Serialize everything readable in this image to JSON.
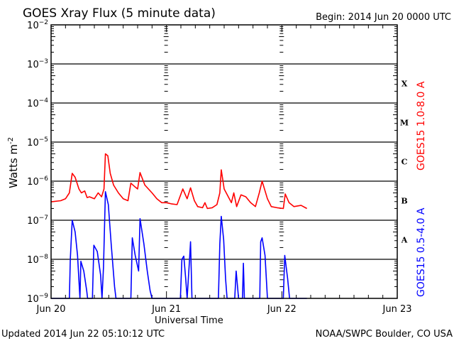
{
  "chart_data": {
    "type": "line",
    "title": "GOES Xray Flux (5 minute data)",
    "begin_label": "Begin:  2014 Jun 20 0000 UTC",
    "xlabel": "Universal Time",
    "ylabel": "Watts m",
    "ylabel_sup": "-2",
    "x_unit": "hours since 2014 Jun 20 0000 UTC",
    "xlim": [
      0,
      72
    ],
    "x_tick_labels": [
      "Jun 20",
      "Jun 21",
      "Jun 22",
      "Jun 23"
    ],
    "x_tick_hours": [
      0,
      24,
      48,
      72
    ],
    "y_scale": "log",
    "ylim": [
      1e-09,
      0.01
    ],
    "y_tick_base": "10",
    "y_tick_exponents": [
      -2,
      -3,
      -4,
      -5,
      -6,
      -7,
      -8,
      -9
    ],
    "flare_classes": [
      {
        "label": "X",
        "decade_exponent": -4
      },
      {
        "label": "M",
        "decade_exponent": -5
      },
      {
        "label": "C",
        "decade_exponent": -6
      },
      {
        "label": "B",
        "decade_exponent": -7
      },
      {
        "label": "A",
        "decade_exponent": -8
      }
    ],
    "grid": true,
    "series": [
      {
        "name": "GOES15 1.0-8.0 A",
        "color": "#ff0000",
        "points_hour_log10flux": [
          [
            0,
            -6.53
          ],
          [
            2,
            -6.5
          ],
          [
            3,
            -6.45
          ],
          [
            3.8,
            -6.3
          ],
          [
            4.4,
            -5.8
          ],
          [
            5,
            -5.9
          ],
          [
            5.8,
            -6.2
          ],
          [
            6.3,
            -6.3
          ],
          [
            7,
            -6.25
          ],
          [
            7.5,
            -6.42
          ],
          [
            8,
            -6.4
          ],
          [
            9,
            -6.45
          ],
          [
            9.8,
            -6.3
          ],
          [
            10.5,
            -6.4
          ],
          [
            11,
            -6.2
          ],
          [
            11.3,
            -5.3
          ],
          [
            11.8,
            -5.35
          ],
          [
            12.3,
            -5.8
          ],
          [
            13,
            -6.1
          ],
          [
            14,
            -6.3
          ],
          [
            15,
            -6.45
          ],
          [
            16,
            -6.5
          ],
          [
            16.6,
            -6.05
          ],
          [
            17.5,
            -6.15
          ],
          [
            18,
            -6.2
          ],
          [
            18.5,
            -5.78
          ],
          [
            19.5,
            -6.1
          ],
          [
            21,
            -6.3
          ],
          [
            22,
            -6.45
          ],
          [
            23,
            -6.55
          ],
          [
            24,
            -6.55
          ],
          [
            25,
            -6.58
          ],
          [
            26.2,
            -6.6
          ],
          [
            27.4,
            -6.2
          ],
          [
            28.3,
            -6.45
          ],
          [
            29,
            -6.17
          ],
          [
            29.8,
            -6.5
          ],
          [
            30.5,
            -6.65
          ],
          [
            31.5,
            -6.68
          ],
          [
            32,
            -6.55
          ],
          [
            32.5,
            -6.7
          ],
          [
            33.5,
            -6.68
          ],
          [
            34.5,
            -6.6
          ],
          [
            35.1,
            -6.3
          ],
          [
            35.4,
            -5.71
          ],
          [
            36,
            -6.2
          ],
          [
            37.5,
            -6.55
          ],
          [
            38,
            -6.3
          ],
          [
            38.6,
            -6.65
          ],
          [
            39.5,
            -6.35
          ],
          [
            40.5,
            -6.4
          ],
          [
            41.5,
            -6.55
          ],
          [
            42.5,
            -6.65
          ],
          [
            43.3,
            -6.3
          ],
          [
            43.9,
            -6.0
          ],
          [
            45,
            -6.45
          ],
          [
            45.8,
            -6.65
          ],
          [
            47,
            -6.68
          ],
          [
            48.3,
            -6.7
          ],
          [
            48.7,
            -6.33
          ],
          [
            49.5,
            -6.55
          ],
          [
            50.5,
            -6.65
          ],
          [
            52,
            -6.62
          ],
          [
            53.2,
            -6.7
          ]
        ]
      },
      {
        "name": "GOES15 0.5-4.0 A",
        "color": "#0000ff",
        "points_hour_log10flux": [
          [
            0,
            -9
          ],
          [
            3.8,
            -9
          ],
          [
            4.0,
            -8.0
          ],
          [
            4.4,
            -7.0
          ],
          [
            5,
            -7.3
          ],
          [
            5.5,
            -7.9
          ],
          [
            6,
            -9
          ],
          [
            6.2,
            -8.05
          ],
          [
            6.8,
            -8.3
          ],
          [
            7.4,
            -8.8
          ],
          [
            7.6,
            -9
          ],
          [
            8.6,
            -9
          ],
          [
            8.9,
            -7.64
          ],
          [
            9.6,
            -7.8
          ],
          [
            10.3,
            -8.4
          ],
          [
            10.6,
            -9
          ],
          [
            10.9,
            -8.2
          ],
          [
            11.3,
            -6.27
          ],
          [
            11.9,
            -6.6
          ],
          [
            12.5,
            -7.6
          ],
          [
            13.2,
            -8.7
          ],
          [
            13.5,
            -9
          ],
          [
            16.6,
            -9
          ],
          [
            16.9,
            -7.45
          ],
          [
            17.5,
            -7.9
          ],
          [
            18.2,
            -8.3
          ],
          [
            18.5,
            -6.96
          ],
          [
            19.3,
            -7.6
          ],
          [
            20,
            -8.3
          ],
          [
            20.6,
            -8.8
          ],
          [
            21,
            -9
          ],
          [
            26.9,
            -9
          ],
          [
            27.2,
            -8.0
          ],
          [
            27.6,
            -7.92
          ],
          [
            28,
            -8.5
          ],
          [
            28.3,
            -9
          ],
          [
            28.8,
            -8.0
          ],
          [
            29,
            -7.55
          ],
          [
            29.3,
            -9
          ],
          [
            34.8,
            -9
          ],
          [
            35.1,
            -7.6
          ],
          [
            35.4,
            -6.9
          ],
          [
            35.9,
            -7.5
          ],
          [
            36.3,
            -8.5
          ],
          [
            36.6,
            -9
          ],
          [
            38.2,
            -9
          ],
          [
            38.5,
            -8.3
          ],
          [
            39,
            -9
          ],
          [
            39.8,
            -9
          ],
          [
            40.0,
            -8.1
          ],
          [
            40.2,
            -9
          ],
          [
            43.4,
            -9
          ],
          [
            43.6,
            -7.55
          ],
          [
            43.9,
            -7.45
          ],
          [
            44.5,
            -7.9
          ],
          [
            45,
            -9
          ],
          [
            48.3,
            -9
          ],
          [
            48.6,
            -7.9
          ],
          [
            49.2,
            -8.5
          ],
          [
            49.6,
            -9
          ],
          [
            53.2,
            -9
          ]
        ]
      }
    ]
  },
  "footer": {
    "updated": "Updated 2014 Jun 22 05:10:12 UTC",
    "credit": "NOAA/SWPC Boulder, CO USA"
  }
}
